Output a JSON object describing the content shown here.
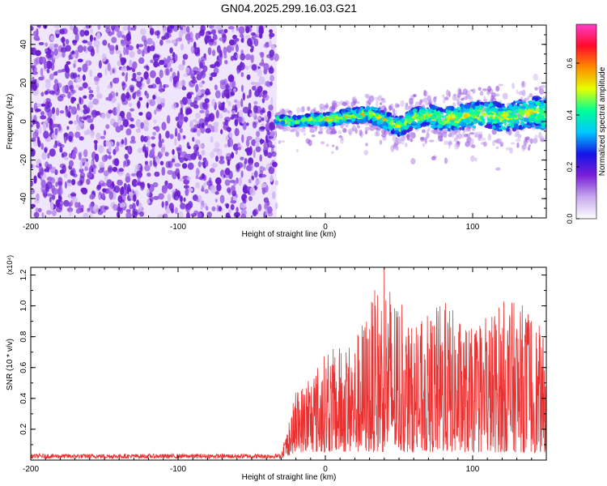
{
  "title": "GN04.2025.299.16.03.G21",
  "chart_data": [
    {
      "type": "heatmap",
      "xlabel": "Height of straight line (km)",
      "ylabel": "Frequency (Hz)",
      "xlim": [
        -200,
        150
      ],
      "ylim": [
        -50,
        50
      ],
      "xticks": [
        -200,
        -100,
        0,
        100
      ],
      "yticks": [
        -40,
        -20,
        0,
        20,
        40
      ],
      "colorbar": {
        "label": "Normalized spectral amplitude",
        "range": [
          0.0,
          0.75
        ],
        "ticks": [
          0.0,
          0.2,
          0.4,
          0.6
        ],
        "colormap": [
          "#ffffff",
          "#c7a8ee",
          "#7a1fd8",
          "#1414e6",
          "#00c8ff",
          "#00ff96",
          "#e6ff00",
          "#ff8c00",
          "#ff0a2a",
          "#ff3cc8"
        ]
      },
      "noise_region": {
        "x": [
          -200,
          -33
        ],
        "color": "#6a1fd0"
      },
      "signal_track": [
        {
          "x": -33,
          "y": 1
        },
        {
          "x": -20,
          "y": 0
        },
        {
          "x": -10,
          "y": 1
        },
        {
          "x": 0,
          "y": 1
        },
        {
          "x": 10,
          "y": 2
        },
        {
          "x": 20,
          "y": 3
        },
        {
          "x": 30,
          "y": 4
        },
        {
          "x": 40,
          "y": 1
        },
        {
          "x": 50,
          "y": -3
        },
        {
          "x": 60,
          "y": 2
        },
        {
          "x": 70,
          "y": 3
        },
        {
          "x": 80,
          "y": 1
        },
        {
          "x": 90,
          "y": 2
        },
        {
          "x": 100,
          "y": 3
        },
        {
          "x": 110,
          "y": 4
        },
        {
          "x": 120,
          "y": 2
        },
        {
          "x": 130,
          "y": 3
        },
        {
          "x": 140,
          "y": 5
        },
        {
          "x": 150,
          "y": 4
        }
      ]
    },
    {
      "type": "line",
      "xlabel": "Height of straight line (km)",
      "ylabel": "SNR (10 * v/v)",
      "y_multiplier": "(x10⁴)",
      "xlim": [
        -200,
        150
      ],
      "ylim": [
        0,
        1.25
      ],
      "xticks": [
        -200,
        -100,
        0,
        100
      ],
      "yticks": [
        0.2,
        0.4,
        0.6,
        0.8,
        1.0,
        1.2
      ],
      "color": "#e83232",
      "envelope": [
        {
          "x": -200,
          "low": 0.01,
          "high": 0.04
        },
        {
          "x": -30,
          "low": 0.01,
          "high": 0.04
        },
        {
          "x": -20,
          "low": 0.05,
          "high": 0.45
        },
        {
          "x": 0,
          "low": 0.05,
          "high": 0.7
        },
        {
          "x": 20,
          "low": 0.05,
          "high": 0.8
        },
        {
          "x": 40,
          "low": 0.05,
          "high": 1.25
        },
        {
          "x": 60,
          "low": 0.05,
          "high": 0.85
        },
        {
          "x": 80,
          "low": 0.05,
          "high": 1.05
        },
        {
          "x": 100,
          "low": 0.05,
          "high": 0.85
        },
        {
          "x": 120,
          "low": 0.05,
          "high": 1.05
        },
        {
          "x": 140,
          "low": 0.05,
          "high": 1.0
        },
        {
          "x": 150,
          "low": 0.05,
          "high": 0.75
        }
      ]
    }
  ]
}
